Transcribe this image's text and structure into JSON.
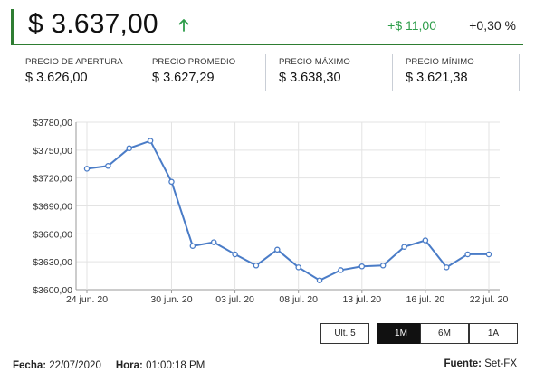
{
  "header": {
    "price": "$ 3.637,00",
    "change_abs": "+$ 11,00",
    "change_pct": "+0,30 %"
  },
  "stats": [
    {
      "label": "PRECIO DE APERTURA",
      "value": "$ 3.626,00"
    },
    {
      "label": "PRECIO PROMEDIO",
      "value": "$ 3.627,29"
    },
    {
      "label": "PRECIO MÁXIMO",
      "value": "$ 3.638,30"
    },
    {
      "label": "PRECIO MÍNIMO",
      "value": "$ 3.621,38"
    }
  ],
  "range_buttons": [
    "Ult. 5",
    "1M",
    "6M",
    "1A"
  ],
  "active_range": "1M",
  "footer": {
    "fecha_label": "Fecha:",
    "fecha_value": "22/07/2020",
    "hora_label": "Hora:",
    "hora_value": "01:00:18 PM",
    "source_label": "Fuente:",
    "source_value": "Set-FX"
  },
  "colors": {
    "accent_green": "#2e7d32",
    "up_green": "#2e9d4a",
    "line": "#4a7cc7"
  },
  "chart_data": {
    "type": "line",
    "title": "",
    "xlabel": "",
    "ylabel": "",
    "x": [
      "24 jun. 20",
      "25 jun. 20",
      "26 jun. 20",
      "29 jun. 20",
      "30 jun. 20",
      "01 jul. 20",
      "02 jul. 20",
      "03 jul. 20",
      "06 jul. 20",
      "07 jul. 20",
      "08 jul. 20",
      "09 jul. 20",
      "10 jul. 20",
      "13 jul. 20",
      "14 jul. 20",
      "15 jul. 20",
      "16 jul. 20",
      "17 jul. 20",
      "21 jul. 20",
      "22 jul. 20"
    ],
    "xticks": [
      "24 jun. 20",
      "30 jun. 20",
      "03 jul. 20",
      "08 jul. 20",
      "13 jul. 20",
      "16 jul. 20",
      "22 jul. 20"
    ],
    "yticks": [
      "$3600,00",
      "$3630,00",
      "$3660,00",
      "$3690,00",
      "$3720,00",
      "$3750,00",
      "$3780,00"
    ],
    "ylim": [
      3600,
      3780
    ],
    "grid": true,
    "series": [
      {
        "values": [
          3730,
          3733,
          3752,
          3760,
          3716,
          3647,
          3651,
          3638,
          3626,
          3643,
          3624,
          3610,
          3621,
          3625,
          3626,
          3646,
          3653,
          3624,
          3638,
          3638
        ]
      }
    ]
  }
}
